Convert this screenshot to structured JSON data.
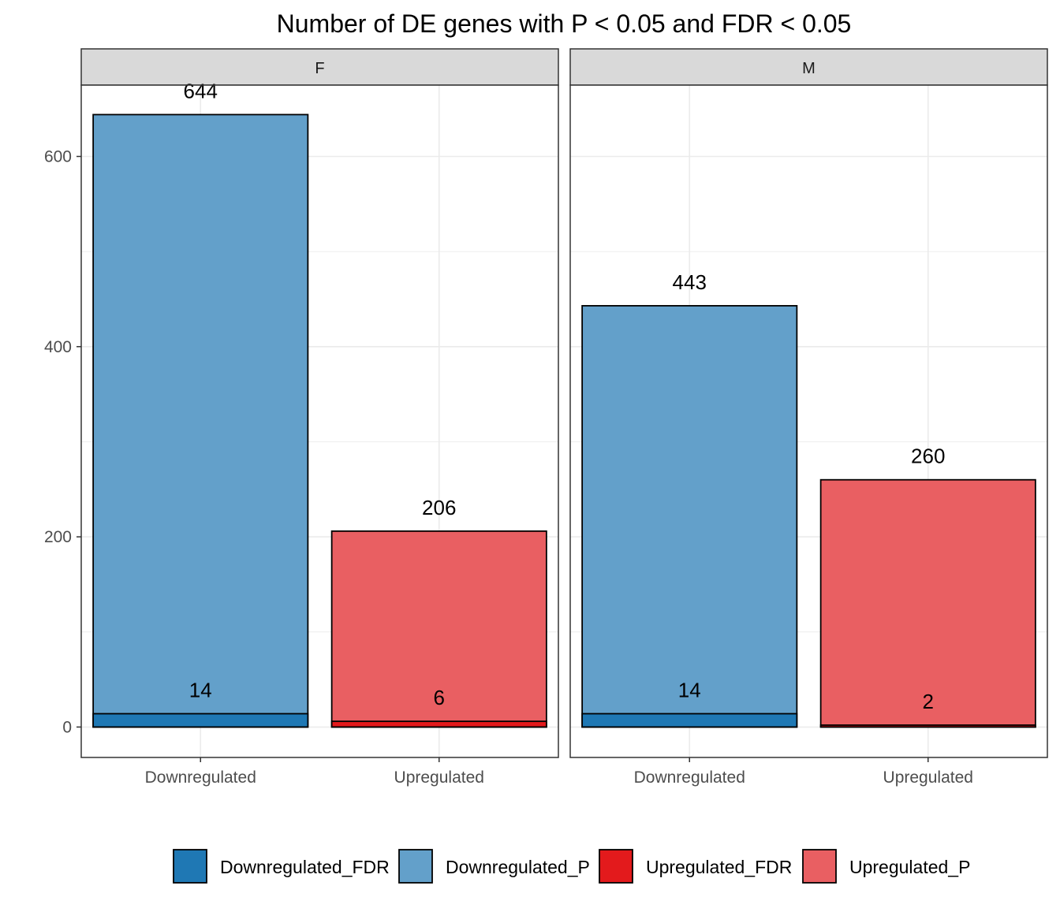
{
  "chart_data": {
    "type": "bar",
    "title": "Number of DE genes with P < 0.05 and FDR < 0.05",
    "xlabel": "",
    "ylabel": "",
    "ylim": [
      -32,
      675
    ],
    "y_ticks": [
      0,
      200,
      400,
      600
    ],
    "grid": true,
    "legend_position": "bottom",
    "categories": [
      "Downregulated",
      "Upregulated"
    ],
    "facets": [
      {
        "name": "F",
        "bars": [
          {
            "category": "Downregulated",
            "p_series": "Downregulated_P",
            "p_value": 644,
            "fdr_series": "Downregulated_FDR",
            "fdr_value": 14
          },
          {
            "category": "Upregulated",
            "p_series": "Upregulated_P",
            "p_value": 206,
            "fdr_series": "Upregulated_FDR",
            "fdr_value": 6
          }
        ]
      },
      {
        "name": "M",
        "bars": [
          {
            "category": "Downregulated",
            "p_series": "Downregulated_P",
            "p_value": 443,
            "fdr_series": "Downregulated_FDR",
            "fdr_value": 14
          },
          {
            "category": "Upregulated",
            "p_series": "Upregulated_P",
            "p_value": 260,
            "fdr_series": "Upregulated_FDR",
            "fdr_value": 2
          }
        ]
      }
    ],
    "series": [
      {
        "name": "Downregulated_FDR",
        "color": "#1f78b4"
      },
      {
        "name": "Downregulated_P",
        "color": "#63a0ca"
      },
      {
        "name": "Upregulated_FDR",
        "color": "#e31a1c"
      },
      {
        "name": "Upregulated_P",
        "color": "#e95f62"
      }
    ]
  },
  "colors": {
    "strip_background": "#d9d9d9",
    "grid": "#ebebeb",
    "panel_border": "#333333"
  }
}
